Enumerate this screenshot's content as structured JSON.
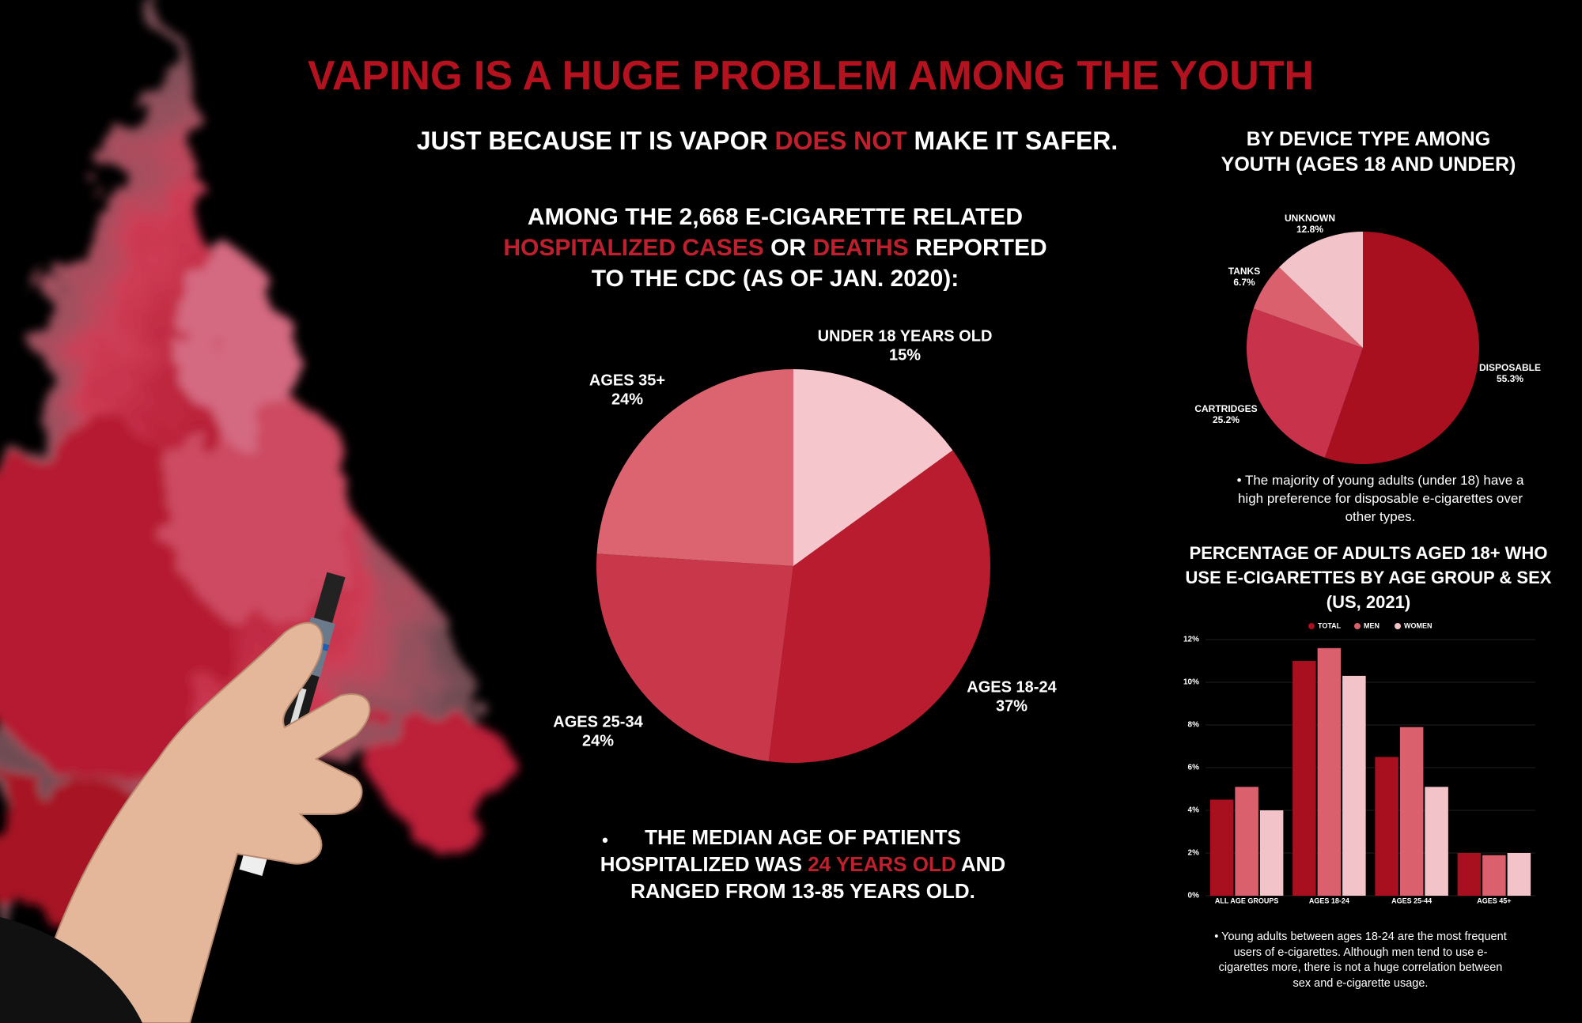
{
  "title": "VAPING IS A HUGE PROBLEM AMONG THE YOUTH",
  "title_color": "#b5121f",
  "subtitle": [
    {
      "text": "JUST BECAUSE IT IS VAPOR",
      "color": "#ffffff"
    },
    {
      "text": "DOES NOT",
      "color": "#c0202e"
    },
    {
      "text": "MAKE IT SAFER.",
      "color": "#ffffff"
    }
  ],
  "chart_data": [
    {
      "type": "pie",
      "title_lines": [
        [
          {
            "text": "AMONG THE 2,668 E-CIGARETTE RELATED",
            "color": "#ffffff"
          }
        ],
        [
          {
            "text": "HOSPITALIZED CASES",
            "color": "#c0202e"
          },
          {
            "text": "OR",
            "color": "#ffffff"
          },
          {
            "text": "DEATHS",
            "color": "#c0202e"
          },
          {
            "text": "REPORTED",
            "color": "#ffffff"
          }
        ],
        [
          {
            "text": "TO THE CDC (AS OF JAN. 2020):",
            "color": "#ffffff"
          }
        ]
      ],
      "categories": [
        "UNDER 18 YEARS OLD",
        "AGES 18-24",
        "AGES 25-34",
        "AGES 35+"
      ],
      "values": [
        15,
        37,
        24,
        24
      ],
      "value_labels": [
        "15%",
        "37%",
        "24%",
        "24%"
      ],
      "colors": [
        "#f5c6cc",
        "#b81c2e",
        "#c9374a",
        "#db6470"
      ],
      "note_lines": [
        [
          {
            "text": "THE MEDIAN AGE OF PATIENTS",
            "color": "#ffffff"
          }
        ],
        [
          {
            "text": "HOSPITALIZED WAS",
            "color": "#ffffff"
          },
          {
            "text": "24 YEARS OLD",
            "color": "#c0202e"
          },
          {
            "text": "AND",
            "color": "#ffffff"
          }
        ],
        [
          {
            "text": "RANGED FROM 13-85 YEARS OLD.",
            "color": "#ffffff"
          }
        ]
      ]
    },
    {
      "type": "pie",
      "title": "BY DEVICE TYPE AMONG YOUTH (AGES 18 AND UNDER)",
      "categories": [
        "DISPOSABLE",
        "CARTRIDGES",
        "TANKS",
        "UNKNOWN"
      ],
      "values": [
        55.3,
        25.2,
        6.7,
        12.8
      ],
      "value_labels": [
        "55.3%",
        "25.2%",
        "6.7%",
        "12.8%"
      ],
      "colors": [
        "#a8101f",
        "#c8324a",
        "#d9606c",
        "#f2c3c8"
      ],
      "note": "The majority of young adults (under 18) have a high preference for disposable e-cigarettes over other types."
    },
    {
      "type": "bar",
      "title": "PERCENTAGE OF ADULTS AGED 18+ WHO USE E-CIGARETTES BY AGE GROUP & SEX (US, 2021)",
      "categories": [
        "ALL AGE GROUPS",
        "AGES 18-24",
        "AGES 25-44",
        "AGES 45+"
      ],
      "series": [
        {
          "name": "TOTAL",
          "color": "#a8101f",
          "values": [
            4.5,
            11,
            6.5,
            2
          ]
        },
        {
          "name": "MEN",
          "color": "#d9606c",
          "values": [
            5.1,
            11.6,
            7.9,
            1.9
          ]
        },
        {
          "name": "WOMEN",
          "color": "#f2c3c8",
          "values": [
            4,
            10.3,
            5.1,
            2
          ]
        }
      ],
      "ylim": [
        0,
        12
      ],
      "yticks": [
        {
          "value": 0,
          "label": "0%"
        },
        {
          "value": 2,
          "label": "2%"
        },
        {
          "value": 4,
          "label": "4%"
        },
        {
          "value": 6,
          "label": "6%"
        },
        {
          "value": 8,
          "label": "8%"
        },
        {
          "value": 10,
          "label": "10%"
        },
        {
          "value": 12,
          "label": "12%"
        }
      ],
      "grid": true,
      "legend": "top",
      "note": "Young adults between ages 18-24 are the most frequent users of e-cigarettes. Although men tend to use e-cigarettes more, there is not a huge correlation between sex and e-cigarette usage."
    }
  ]
}
